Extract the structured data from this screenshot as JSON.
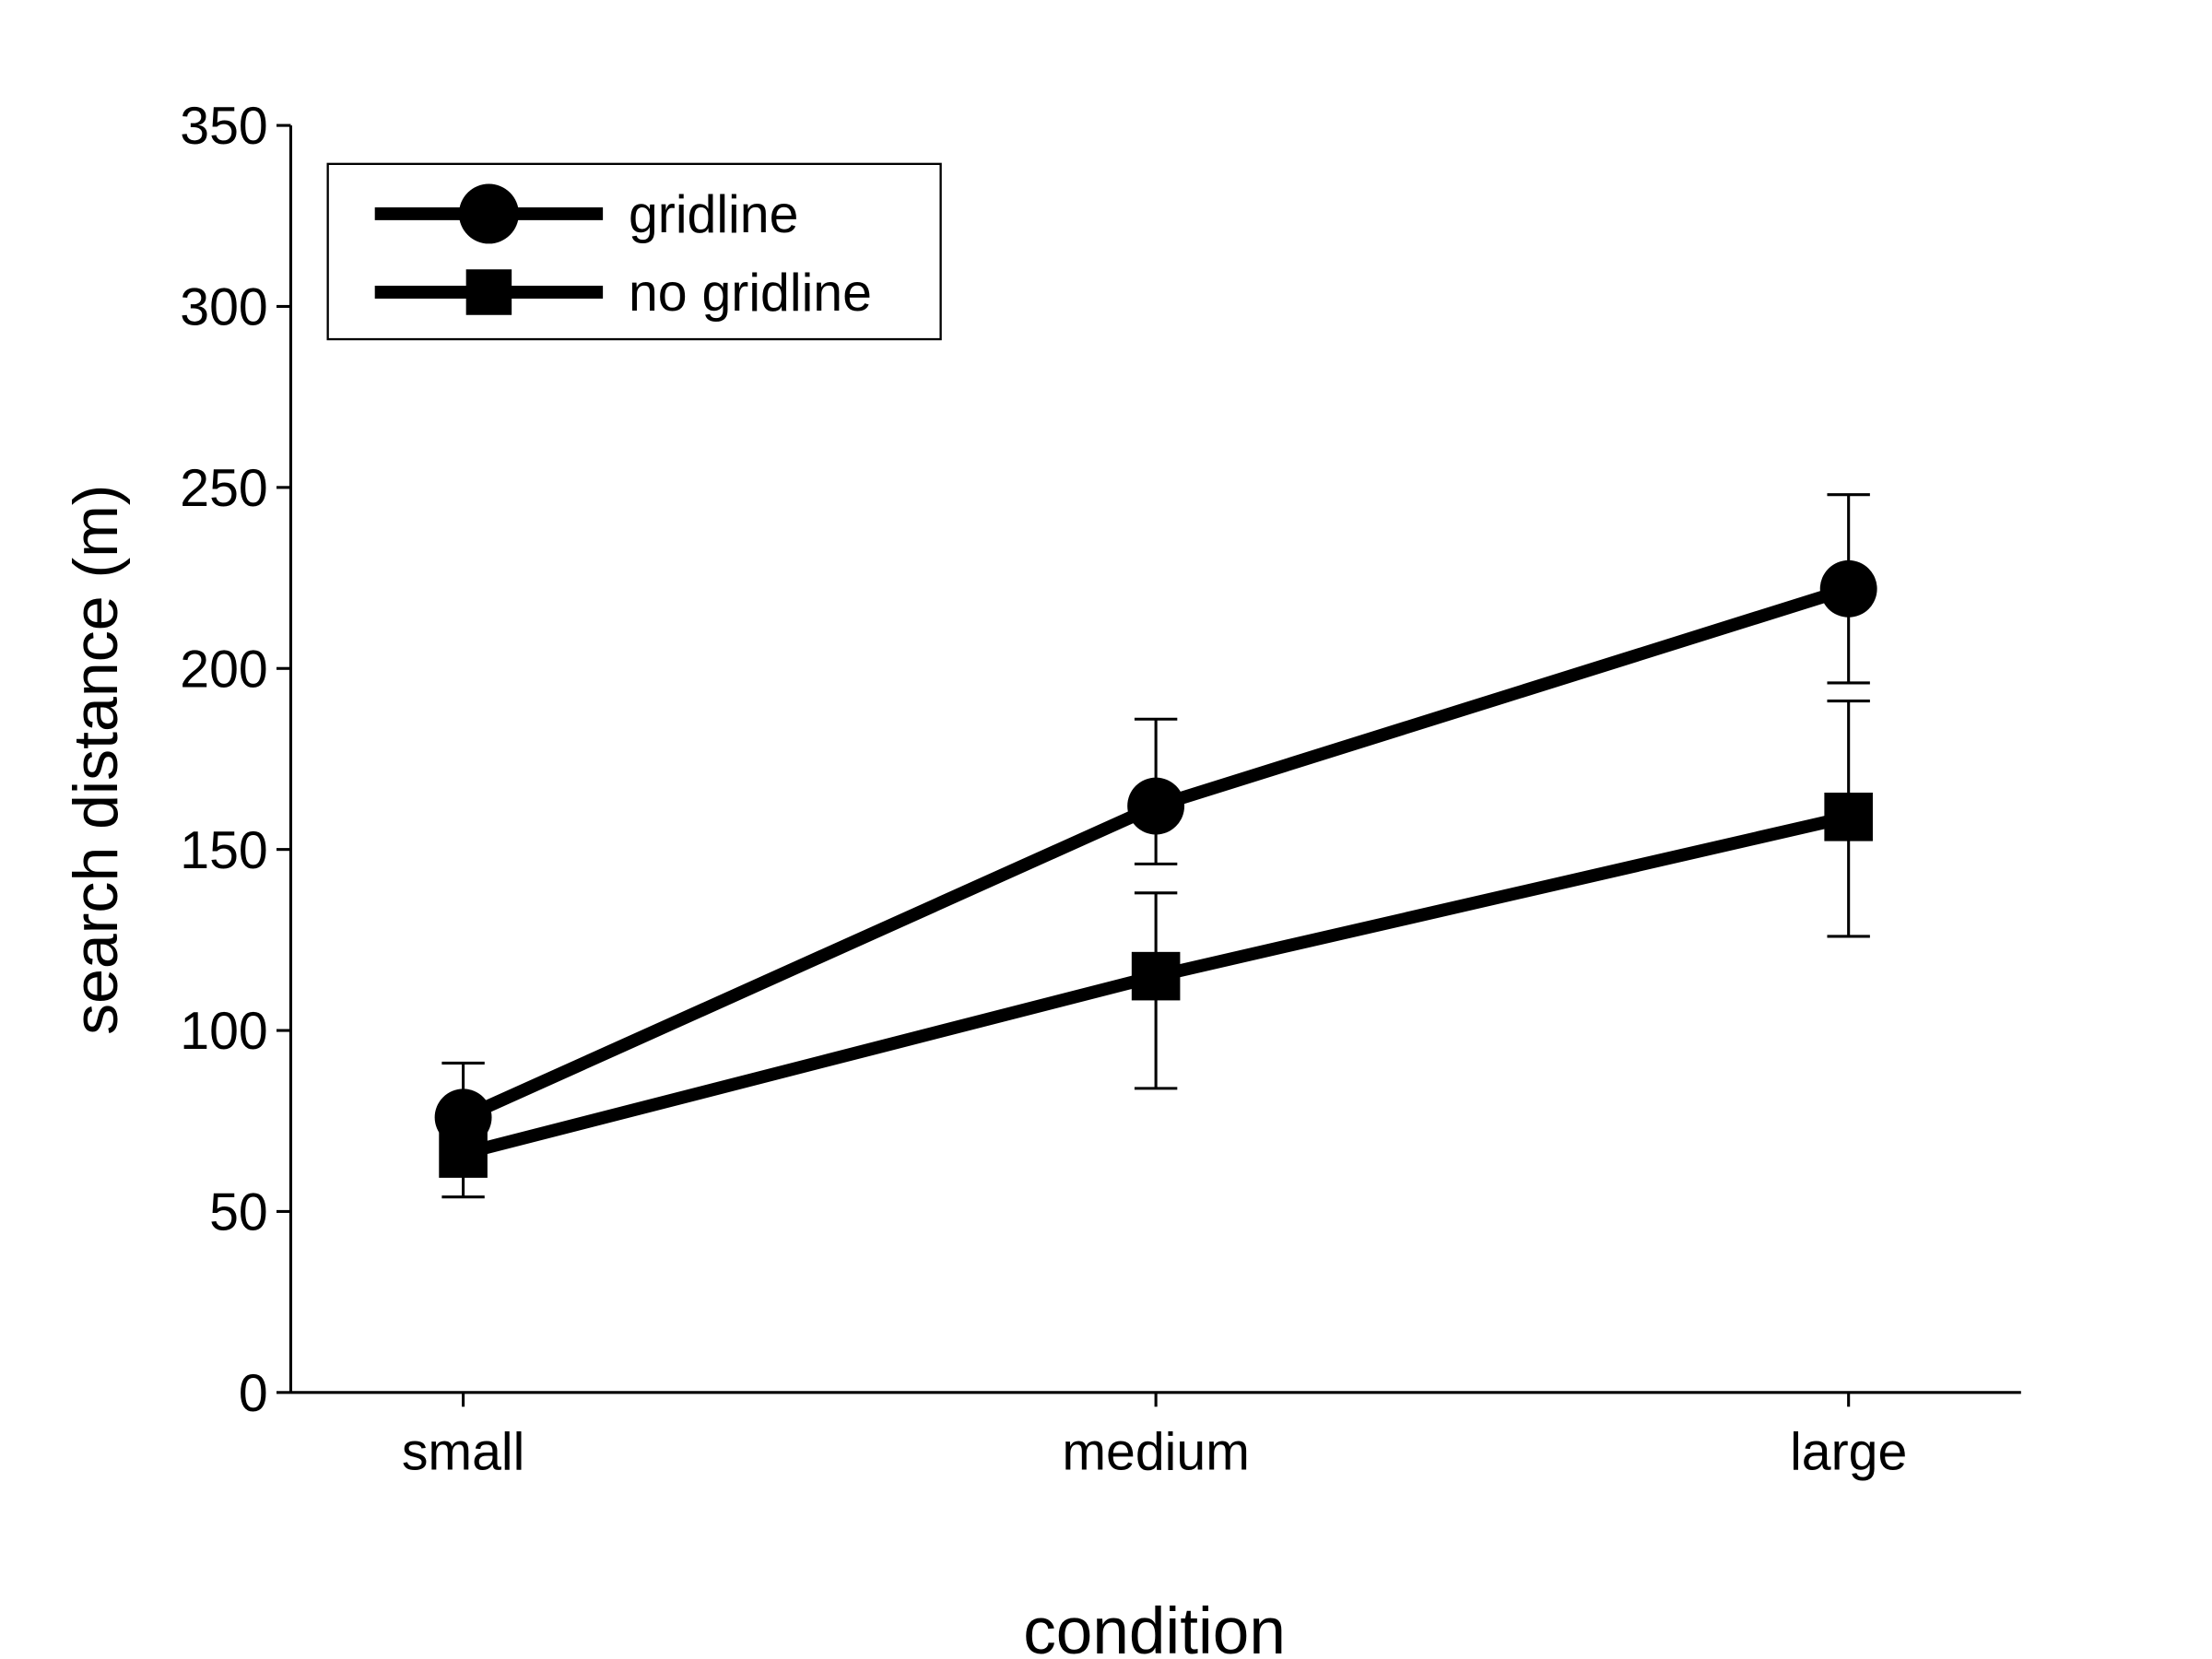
{
  "chart_data": {
    "type": "line",
    "title": "",
    "xlabel": "condition",
    "ylabel": "search distance (m)",
    "categories": [
      "small",
      "medium",
      "large"
    ],
    "ylim": [
      0,
      350
    ],
    "yticks": [
      0,
      50,
      100,
      150,
      200,
      250,
      300,
      350
    ],
    "grid": false,
    "legend_position": "top-left",
    "series": [
      {
        "name": "gridline",
        "marker": "circle",
        "values": [
          76,
          162,
          222
        ],
        "err_upper": [
          91,
          186,
          248
        ],
        "err_lower": [
          61,
          146,
          196
        ]
      },
      {
        "name": "no gridline",
        "marker": "square",
        "values": [
          66,
          115,
          159
        ],
        "err_upper": [
          77,
          138,
          191
        ],
        "err_lower": [
          54,
          84,
          126
        ]
      }
    ]
  }
}
